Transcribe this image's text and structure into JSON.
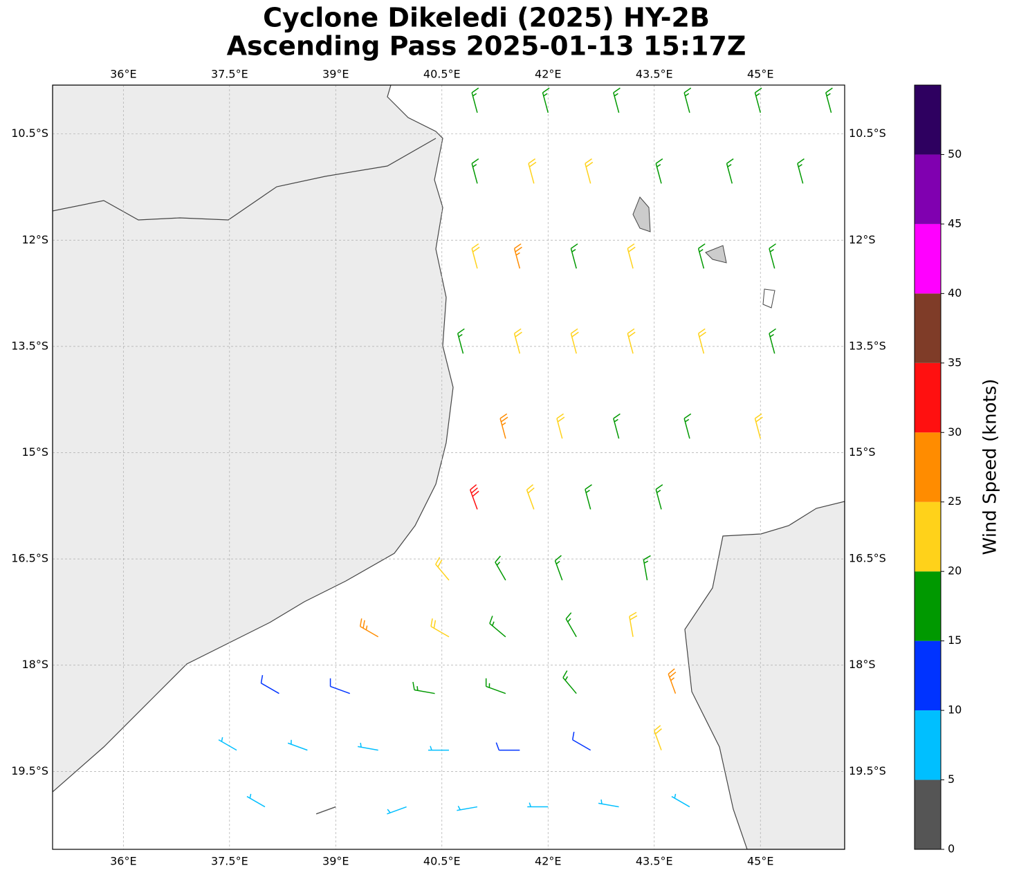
{
  "chart_data": {
    "type": "barbs",
    "title": [
      "Cyclone Dikeledi (2025) HY-2B",
      "Ascending Pass 2025-01-13 15:17Z"
    ],
    "xlim": [
      35.0,
      46.19
    ],
    "ylim": [
      -20.6,
      -9.81
    ],
    "xticks": [
      {
        "value": 36,
        "label": "36°E"
      },
      {
        "value": 37.5,
        "label": "37.5°E"
      },
      {
        "value": 39,
        "label": "39°E"
      },
      {
        "value": 40.5,
        "label": "40.5°E"
      },
      {
        "value": 42,
        "label": "42°E"
      },
      {
        "value": 43.5,
        "label": "43.5°E"
      },
      {
        "value": 45,
        "label": "45°E"
      }
    ],
    "yticks": [
      {
        "value": -10.5,
        "label": "10.5°S"
      },
      {
        "value": -12,
        "label": "12°S"
      },
      {
        "value": -13.5,
        "label": "13.5°S"
      },
      {
        "value": -15,
        "label": "15°S"
      },
      {
        "value": -16.5,
        "label": "16.5°S"
      },
      {
        "value": -18,
        "label": "18°S"
      },
      {
        "value": -19.5,
        "label": "19.5°S"
      }
    ],
    "grid": true,
    "barbs": {
      "lon": [
        41.0,
        42.0,
        43.0,
        44.0,
        45.0,
        46.0,
        41.0,
        41.8,
        42.6,
        43.6,
        44.6,
        45.6,
        41.0,
        41.6,
        42.4,
        43.2,
        44.2,
        45.2,
        40.8,
        41.6,
        42.4,
        43.2,
        44.2,
        45.2,
        41.4,
        42.2,
        43.0,
        44.0,
        45.0,
        41.0,
        41.8,
        42.6,
        43.6,
        40.6,
        41.4,
        42.2,
        43.4,
        39.6,
        40.6,
        41.4,
        42.4,
        43.2,
        38.2,
        39.2,
        40.4,
        41.4,
        42.4,
        43.8,
        37.6,
        38.6,
        39.6,
        40.6,
        41.6,
        42.6,
        43.6,
        38.0,
        39.0,
        40.0,
        41.0,
        42.0,
        43.0,
        44.0
      ],
      "lat": [
        -10.2,
        -10.2,
        -10.2,
        -10.2,
        -10.2,
        -10.2,
        -11.2,
        -11.2,
        -11.2,
        -11.2,
        -11.2,
        -11.2,
        -12.4,
        -12.4,
        -12.4,
        -12.4,
        -12.4,
        -12.4,
        -13.6,
        -13.6,
        -13.6,
        -13.6,
        -13.6,
        -13.6,
        -14.8,
        -14.8,
        -14.8,
        -14.8,
        -14.8,
        -15.8,
        -15.8,
        -15.8,
        -15.8,
        -16.8,
        -16.8,
        -16.8,
        -16.8,
        -17.6,
        -17.6,
        -17.6,
        -17.6,
        -17.6,
        -18.4,
        -18.4,
        -18.4,
        -18.4,
        -18.4,
        -18.4,
        -19.2,
        -19.2,
        -19.2,
        -19.2,
        -19.2,
        -19.2,
        -19.2,
        -20.0,
        -20.0,
        -20.0,
        -20.0,
        -20.0,
        -20.0,
        -20.0
      ],
      "speed": [
        17,
        17,
        17,
        17,
        17,
        17,
        17,
        22,
        22,
        17,
        17,
        17,
        22,
        27,
        17,
        22,
        17,
        17,
        17,
        22,
        22,
        22,
        22,
        17,
        27,
        22,
        17,
        17,
        22,
        32,
        22,
        17,
        17,
        22,
        17,
        17,
        17,
        27,
        22,
        17,
        17,
        22,
        12,
        12,
        17,
        17,
        17,
        27,
        7,
        7,
        7,
        7,
        12,
        12,
        22,
        7,
        2,
        7,
        7,
        7,
        7,
        7
      ],
      "direction": [
        345,
        345,
        345,
        345,
        345,
        345,
        345,
        345,
        345,
        345,
        345,
        345,
        345,
        345,
        345,
        345,
        345,
        345,
        345,
        345,
        345,
        345,
        345,
        345,
        345,
        345,
        345,
        345,
        345,
        340,
        340,
        345,
        345,
        320,
        330,
        340,
        350,
        300,
        300,
        310,
        330,
        350,
        300,
        290,
        280,
        290,
        320,
        340,
        300,
        290,
        280,
        270,
        270,
        300,
        340,
        300,
        250,
        250,
        260,
        270,
        280,
        300
      ]
    },
    "colorbar": {
      "label": "Wind Speed (knots)",
      "bounds": [
        0,
        5,
        10,
        15,
        20,
        25,
        30,
        35,
        40,
        45,
        50,
        55
      ],
      "colors": [
        "#555555",
        "#00bfff",
        "#0033ff",
        "#009900",
        "#ffd21a",
        "#ff8c00",
        "#ff1010",
        "#7f3c28",
        "#ff00ff",
        "#8000b0",
        "#2e0060"
      ],
      "ticks": [
        0,
        5,
        10,
        15,
        20,
        25,
        30,
        35,
        40,
        45,
        50
      ]
    }
  }
}
